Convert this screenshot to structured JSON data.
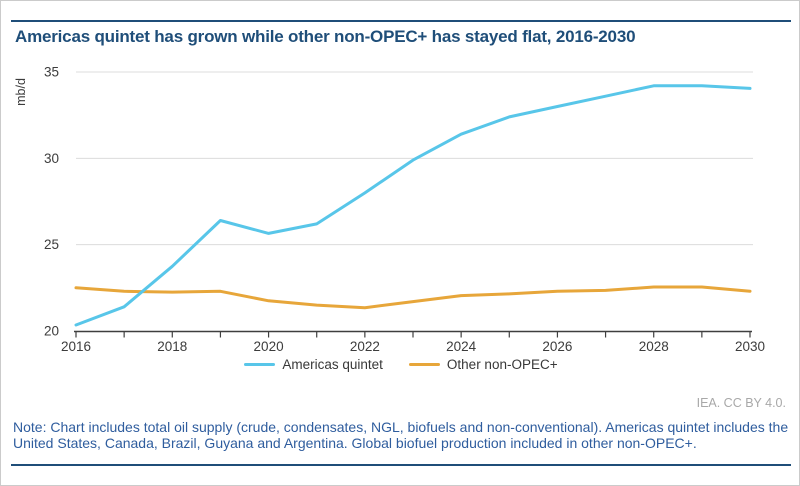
{
  "page": {
    "credit": "IEA. CC BY 4.0.",
    "note": "Note: Chart includes total oil supply (crude, condensates, NGL, biofuels and non-conventional). Americas quintet includes the United States, Canada, Brazil, Guyana and Argentina. Global biofuel production included in other non-OPEC+."
  },
  "chart_data": {
    "type": "line",
    "title": "Americas quintet has grown while other non-OPEC+ has stayed flat, 2016-2030",
    "ylabel": "mb/d",
    "xlabel": "",
    "x": [
      2016,
      2017,
      2018,
      2019,
      2020,
      2021,
      2022,
      2023,
      2024,
      2025,
      2026,
      2027,
      2028,
      2029,
      2030
    ],
    "xtick_labels": [
      "2016",
      "2018",
      "2020",
      "2022",
      "2024",
      "2026",
      "2028",
      "2030"
    ],
    "yticks": [
      20,
      25,
      30,
      35
    ],
    "ylim": [
      20,
      35
    ],
    "grid": "horizontal",
    "legend_position": "bottom",
    "series": [
      {
        "name": "Americas quintet",
        "color": "#58C6E9",
        "values": [
          20.35,
          21.4,
          23.75,
          26.4,
          25.65,
          26.2,
          28.0,
          29.9,
          31.4,
          32.4,
          33.0,
          33.6,
          34.2,
          34.2,
          34.05
        ]
      },
      {
        "name": "Other non-OPEC+",
        "color": "#E7A63A",
        "values": [
          22.5,
          22.3,
          22.25,
          22.3,
          21.75,
          21.5,
          21.35,
          21.7,
          22.05,
          22.15,
          22.3,
          22.35,
          22.55,
          22.55,
          22.3
        ]
      }
    ]
  }
}
